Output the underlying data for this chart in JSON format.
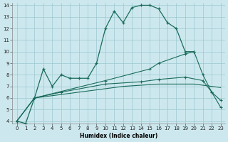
{
  "xlabel": "Humidex (Indice chaleur)",
  "bg_color": "#cce8ee",
  "grid_color": "#9cc8d0",
  "line_color": "#1a6b5a",
  "xlim": [
    -0.5,
    23.5
  ],
  "ylim": [
    3.8,
    14.2
  ],
  "xticks": [
    0,
    1,
    2,
    3,
    4,
    5,
    6,
    7,
    8,
    9,
    10,
    11,
    12,
    13,
    14,
    15,
    16,
    17,
    18,
    19,
    20,
    21,
    22,
    23
  ],
  "yticks": [
    4,
    5,
    6,
    7,
    8,
    9,
    10,
    11,
    12,
    13,
    14
  ],
  "curve1_x": [
    0,
    1,
    2,
    3,
    4,
    5,
    6,
    7,
    8,
    9,
    10,
    11,
    12,
    13,
    14,
    15,
    16,
    17,
    18,
    19,
    20
  ],
  "curve1_y": [
    4.0,
    3.8,
    6.0,
    8.5,
    7.0,
    8.0,
    7.7,
    7.7,
    7.7,
    9.0,
    12.0,
    13.5,
    12.5,
    13.8,
    14.0,
    14.0,
    13.7,
    12.5,
    12.0,
    10.0,
    10.0
  ],
  "curve2_x": [
    0,
    2,
    10,
    15,
    16,
    19,
    20,
    21,
    22,
    23
  ],
  "curve2_y": [
    4.0,
    6.0,
    7.5,
    8.5,
    9.0,
    9.8,
    10.0,
    8.0,
    6.5,
    5.8
  ],
  "curve3_x": [
    0,
    2,
    5,
    10,
    14,
    16,
    19,
    21,
    22,
    23
  ],
  "curve3_y": [
    4.0,
    6.0,
    6.5,
    7.2,
    7.4,
    7.6,
    7.8,
    7.5,
    6.5,
    5.2
  ],
  "curve4_x": [
    0,
    2,
    5,
    8,
    10,
    12,
    14,
    16,
    17,
    18,
    19,
    20,
    21,
    22,
    23
  ],
  "curve4_y": [
    4.0,
    6.0,
    6.3,
    6.6,
    6.8,
    7.0,
    7.1,
    7.2,
    7.2,
    7.2,
    7.2,
    7.2,
    7.1,
    7.0,
    6.9
  ]
}
